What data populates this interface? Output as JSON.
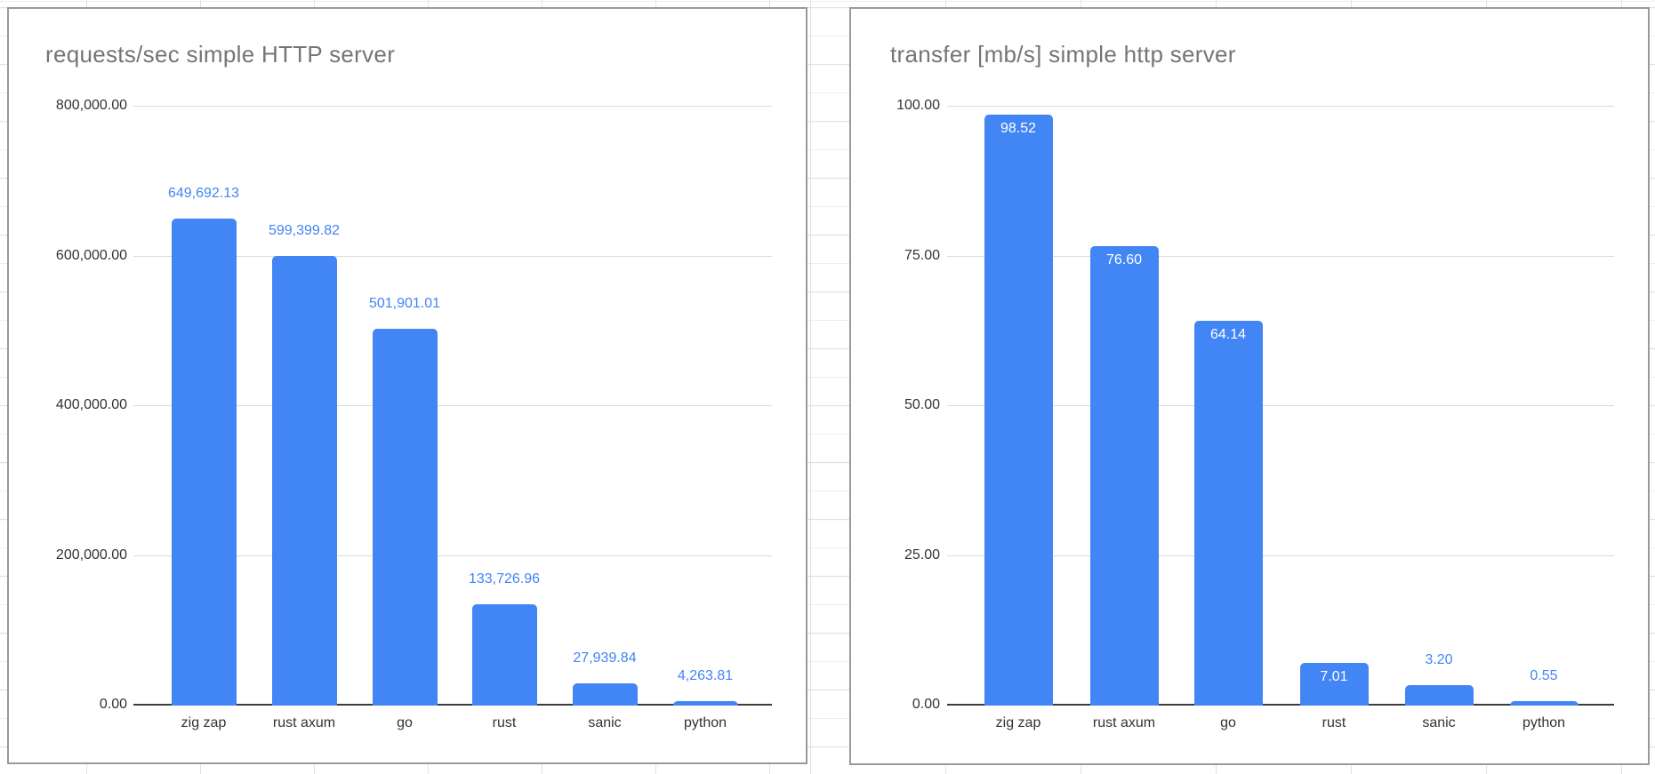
{
  "page": {
    "background_color": "#ffffff",
    "grid_line_color": "#e2e2e2",
    "card_border_color": "#9a9a9a"
  },
  "chart_data": [
    {
      "type": "bar",
      "title": "requests/sec simple HTTP server",
      "categories": [
        "zig zap",
        "rust axum",
        "go",
        "rust",
        "sanic",
        "python"
      ],
      "values": [
        649692.13,
        599399.82,
        501901.01,
        133726.96,
        27939.84,
        4263.81
      ],
      "data_labels": [
        "649,692.13",
        "599,399.82",
        "501,901.01",
        "133,726.96",
        "27,939.84",
        "4,263.81"
      ],
      "label_inside": [
        false,
        false,
        false,
        false,
        false,
        false
      ],
      "ylim": [
        0,
        800000
      ],
      "yticks": [
        {
          "value": 800000,
          "label": "800,000.00"
        },
        {
          "value": 600000,
          "label": "600,000.00"
        },
        {
          "value": 400000,
          "label": "400,000.00"
        },
        {
          "value": 200000,
          "label": "200,000.00"
        },
        {
          "value": 0,
          "label": "0.00"
        }
      ],
      "xlabel": "",
      "ylabel": "",
      "legend_position": "none",
      "grid": true,
      "bar_color": "#4285f4",
      "data_label_color": "#4285f4",
      "data_label_inside_color": "#ffffff",
      "title_color": "#757575",
      "axis_text_color": "#333333",
      "gridline_color": "#d9d9d9",
      "baseline_color": "#3c3c3c"
    },
    {
      "type": "bar",
      "title": "transfer [mb/s] simple http server",
      "categories": [
        "zig zap",
        "rust axum",
        "go",
        "rust",
        "sanic",
        "python"
      ],
      "values": [
        98.52,
        76.6,
        64.14,
        7.01,
        3.2,
        0.55
      ],
      "data_labels": [
        "98.52",
        "76.60",
        "64.14",
        "7.01",
        "3.20",
        "0.55"
      ],
      "label_inside": [
        true,
        true,
        true,
        true,
        false,
        false
      ],
      "ylim": [
        0,
        100
      ],
      "yticks": [
        {
          "value": 100,
          "label": "100.00"
        },
        {
          "value": 75,
          "label": "75.00"
        },
        {
          "value": 50,
          "label": "50.00"
        },
        {
          "value": 25,
          "label": "25.00"
        },
        {
          "value": 0,
          "label": "0.00"
        }
      ],
      "xlabel": "",
      "ylabel": "",
      "legend_position": "none",
      "grid": true,
      "bar_color": "#4285f4",
      "data_label_color": "#4285f4",
      "data_label_inside_color": "#ffffff",
      "title_color": "#757575",
      "axis_text_color": "#333333",
      "gridline_color": "#d9d9d9",
      "baseline_color": "#3c3c3c"
    }
  ]
}
